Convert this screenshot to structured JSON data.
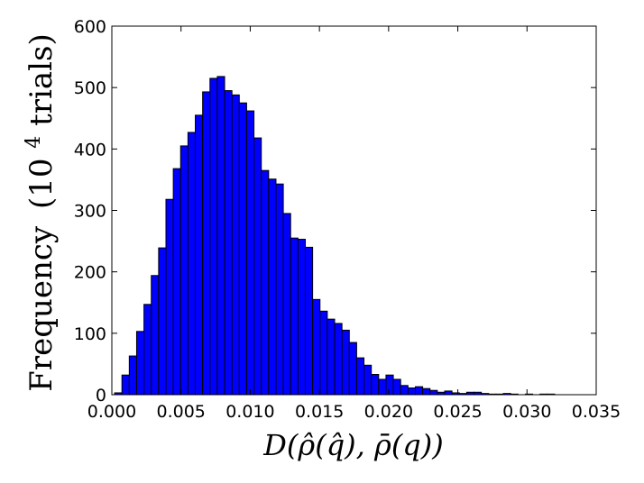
{
  "chart_data": {
    "type": "bar",
    "xlabel": "D(ρ̂(q̂), ρ̄(q))",
    "ylabel": "Frequency (10^4 trials)",
    "ylabel_main": "Frequency",
    "ylabel_paren_open": "(10",
    "ylabel_exp": "4",
    "ylabel_paren_close": " trials)",
    "xlim": [
      0.0,
      0.035
    ],
    "ylim": [
      0,
      600
    ],
    "xticks": [
      0.0,
      0.005,
      0.01,
      0.015,
      0.02,
      0.025,
      0.03,
      0.035
    ],
    "xtick_labels": [
      "0.000",
      "0.005",
      "0.010",
      "0.015",
      "0.020",
      "0.025",
      "0.030",
      "0.035"
    ],
    "yticks": [
      0,
      100,
      200,
      300,
      400,
      500,
      600
    ],
    "ytick_labels": [
      "0",
      "100",
      "200",
      "300",
      "400",
      "500",
      "600"
    ],
    "grid": false,
    "bar_color": "#0000ff",
    "bin_start": 0.0002,
    "bin_width": 0.00053,
    "values": [
      3,
      32,
      63,
      103,
      147,
      194,
      239,
      318,
      368,
      405,
      427,
      455,
      493,
      515,
      518,
      495,
      488,
      475,
      462,
      418,
      365,
      351,
      343,
      295,
      255,
      253,
      240,
      155,
      136,
      123,
      116,
      105,
      85,
      60,
      48,
      33,
      25,
      32,
      25,
      15,
      11,
      13,
      10,
      7,
      4,
      6,
      3,
      2,
      4,
      4,
      2,
      1,
      1,
      2,
      1,
      0,
      1,
      0,
      1,
      1
    ]
  }
}
